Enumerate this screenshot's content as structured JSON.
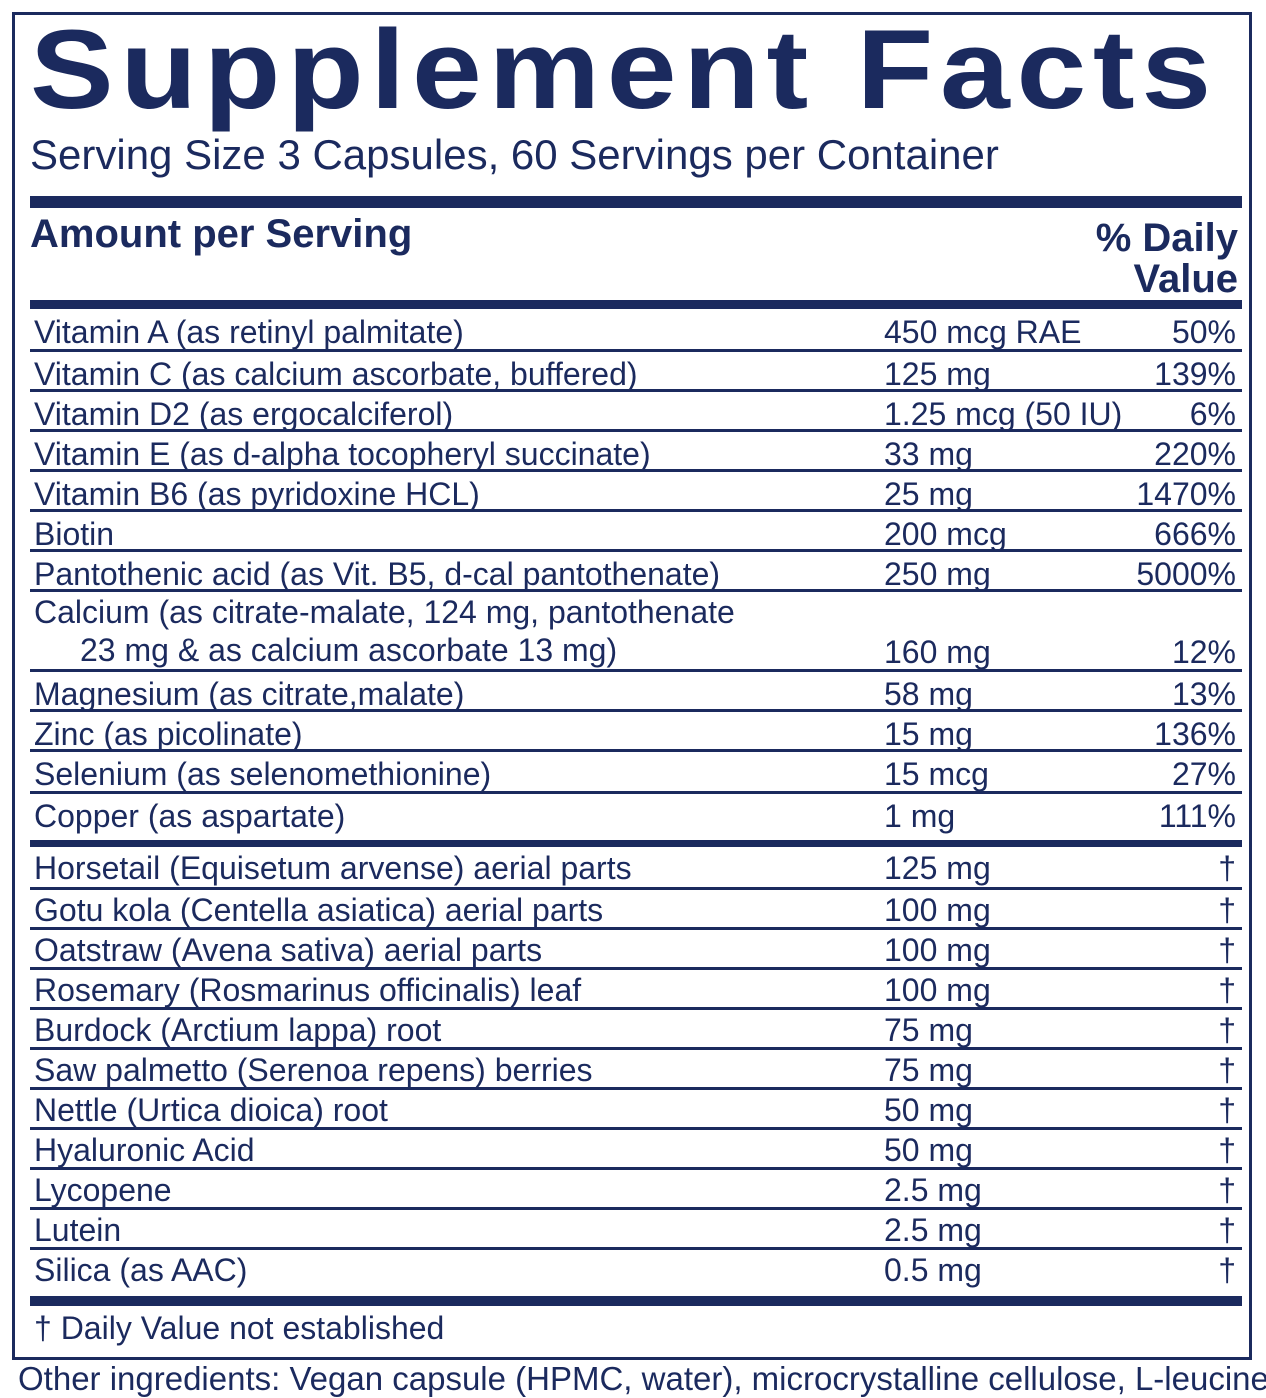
{
  "title": "Supplement Facts",
  "serving": "Serving Size 3 Capsules, 60 Servings per Container",
  "header": {
    "amount_label": "Amount per Serving",
    "dv_line1": "% Daily",
    "dv_line2": "Value"
  },
  "nutrients": [
    {
      "name": "Vitamin A (as retinyl palmitate)",
      "amount": "450 mcg RAE",
      "dv": "50%"
    },
    {
      "name": "Vitamin C (as calcium ascorbate, buffered)",
      "amount": "125 mg",
      "dv": "139%"
    },
    {
      "name": "Vitamin D2 (as ergocalciferol)",
      "amount": "1.25 mcg (50 IU)",
      "dv": "6%"
    },
    {
      "name": "Vitamin E (as d-alpha tocopheryl succinate)",
      "amount": "33 mg",
      "dv": "220%"
    },
    {
      "name": "Vitamin B6 (as pyridoxine HCL)",
      "amount": "25 mg",
      "dv": "1470%"
    },
    {
      "name": "Biotin",
      "amount": "200 mcg",
      "dv": "666%"
    },
    {
      "name": "Pantothenic acid (as Vit. B5, d-cal pantothenate)",
      "amount": "250 mg",
      "dv": "5000%"
    },
    {
      "name": "Calcium (as citrate-malate, 124 mg, pantothenate",
      "name2": "23 mg & as calcium ascorbate 13 mg)",
      "amount": "160 mg",
      "dv": "12%"
    },
    {
      "name": "Magnesium (as citrate,malate)",
      "amount": "58 mg",
      "dv": "13%"
    },
    {
      "name": "Zinc (as picolinate)",
      "amount": "15 mg",
      "dv": "136%"
    },
    {
      "name": "Selenium (as selenomethionine)",
      "amount": "15 mcg",
      "dv": "27%"
    },
    {
      "name": "Copper (as aspartate)",
      "amount": "1 mg",
      "dv": "111%"
    }
  ],
  "botanicals": [
    {
      "name": "Horsetail (Equisetum arvense) aerial parts",
      "amount": "125 mg",
      "dv": "†"
    },
    {
      "name": "Gotu kola (Centella asiatica) aerial parts",
      "amount": "100 mg",
      "dv": "†"
    },
    {
      "name": "Oatstraw (Avena sativa) aerial parts",
      "amount": "100 mg",
      "dv": "†"
    },
    {
      "name": "Rosemary (Rosmarinus officinalis) leaf",
      "amount": "100 mg",
      "dv": "†"
    },
    {
      "name": "Burdock (Arctium lappa) root",
      "amount": "75 mg",
      "dv": "†"
    },
    {
      "name": "Saw palmetto (Serenoa repens) berries",
      "amount": "75 mg",
      "dv": "†"
    },
    {
      "name": "Nettle (Urtica dioica) root",
      "amount": "50 mg",
      "dv": "†"
    },
    {
      "name": "Hyaluronic Acid",
      "amount": "50 mg",
      "dv": "†"
    },
    {
      "name": "Lycopene",
      "amount": "2.5 mg",
      "dv": "†"
    },
    {
      "name": "Lutein",
      "amount": "2.5 mg",
      "dv": "†"
    },
    {
      "name": "Silica (as AAC)",
      "amount": "0.5 mg",
      "dv": "†"
    }
  ],
  "footnote": "† Daily Value not established",
  "other_ingredients": "Other ingredients: Vegan capsule (HPMC, water), microcrystalline cellulose, L-leucine."
}
